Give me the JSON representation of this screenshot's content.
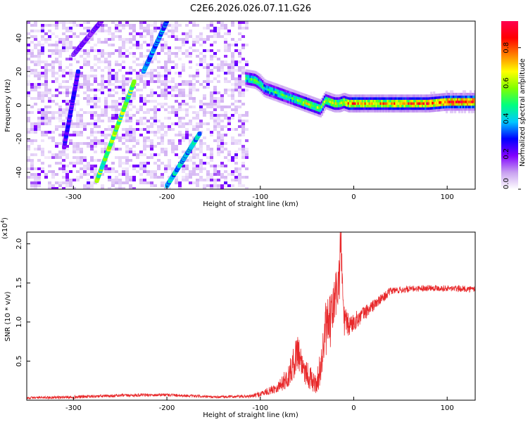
{
  "chart_data": [
    {
      "type": "heatmap",
      "title": "C2E6.2026.026.07.11.G26",
      "xlabel": "Height of straight line (km)",
      "ylabel": "Frequency (Hz)",
      "xlim": [
        -350,
        130
      ],
      "ylim": [
        -50,
        50
      ],
      "xticks": [
        -300,
        -200,
        -100,
        0,
        100
      ],
      "yticks": [
        -40,
        -20,
        0,
        20,
        40
      ],
      "xtick_labels": [
        "-300",
        "-200",
        "-100",
        "0",
        "100"
      ],
      "ytick_labels": [
        "-40",
        "-20",
        "0",
        "20",
        "40"
      ],
      "noise_region_x": [
        -350,
        -115
      ],
      "ridge": {
        "x": [
          -115,
          -105,
          -100,
          -95,
          -90,
          -85,
          -80,
          -75,
          -70,
          -65,
          -60,
          -55,
          -50,
          -45,
          -40,
          -35,
          -30,
          -25,
          -20,
          -15,
          -10,
          -5,
          0,
          10,
          20,
          40,
          60,
          80,
          100,
          130
        ],
        "f": [
          16,
          15,
          13,
          10,
          9,
          8,
          7,
          6,
          5,
          4,
          3,
          2,
          1,
          0,
          -1,
          -2,
          3,
          2,
          1,
          1,
          2,
          1,
          1,
          1,
          1,
          1,
          1,
          1,
          2,
          2
        ],
        "amp": [
          0.45,
          0.55,
          0.5,
          0.4,
          0.45,
          0.45,
          0.5,
          0.5,
          0.45,
          0.5,
          0.55,
          0.6,
          0.65,
          0.6,
          0.55,
          0.6,
          0.55,
          0.6,
          0.65,
          0.6,
          0.7,
          0.75,
          0.8,
          0.75,
          0.72,
          0.75,
          0.78,
          0.8,
          0.85,
          0.9
        ]
      },
      "streaks": [
        {
          "x": [
            -275,
            -235
          ],
          "f": [
            -45,
            14
          ],
          "amp": 0.55
        },
        {
          "x": [
            -200,
            -165
          ],
          "f": [
            -48,
            -17
          ],
          "amp": 0.4
        },
        {
          "x": [
            -225,
            -200
          ],
          "f": [
            20,
            50
          ],
          "amp": 0.35
        },
        {
          "x": [
            -310,
            -295
          ],
          "f": [
            -25,
            20
          ],
          "amp": 0.25
        },
        {
          "x": [
            -300,
            -270
          ],
          "f": [
            30,
            50
          ],
          "amp": 0.2
        }
      ],
      "colorbar": {
        "label": "Normalized spectral amplitude",
        "ticks": [
          0.0,
          0.2,
          0.4,
          0.6,
          0.8
        ],
        "tick_labels": [
          "0.0",
          "0.2",
          "0.4",
          "0.6",
          "0.8"
        ],
        "range": [
          0,
          0.95
        ],
        "colors": [
          "#ffffff",
          "#c8a0f0",
          "#8000ff",
          "#0000ff",
          "#00c8ff",
          "#00ff80",
          "#80ff00",
          "#ffff00",
          "#ff8000",
          "#ff0000",
          "#ff0050"
        ]
      }
    },
    {
      "type": "line",
      "xlabel": "Height of straight line (km)",
      "ylabel": "SNR (10 * v/v)",
      "exponent_label": "(x10",
      "exponent": "4",
      "exponent_close": ")",
      "xlim": [
        -350,
        130
      ],
      "ylim": [
        0,
        2.15
      ],
      "xticks": [
        -300,
        -200,
        -100,
        0,
        100
      ],
      "yticks": [
        0.5,
        1.0,
        1.5,
        2.0
      ],
      "xtick_labels": [
        "-300",
        "-200",
        "-100",
        "0",
        "100"
      ],
      "ytick_labels": [
        "0.5",
        "1.0",
        "1.5",
        "2.0"
      ],
      "color": "#e8282a",
      "series": [
        {
          "name": "SNR",
          "x": [
            -350,
            -300,
            -250,
            -200,
            -150,
            -110,
            -100,
            -90,
            -80,
            -70,
            -65,
            -60,
            -55,
            -50,
            -45,
            -40,
            -35,
            -30,
            -25,
            -20,
            -15,
            -14,
            -12,
            -10,
            -5,
            0,
            10,
            20,
            30,
            40,
            60,
            80,
            100,
            130
          ],
          "y": [
            0.03,
            0.04,
            0.06,
            0.07,
            0.04,
            0.05,
            0.08,
            0.12,
            0.18,
            0.3,
            0.45,
            0.65,
            0.45,
            0.35,
            0.25,
            0.2,
            0.45,
            0.9,
            1.0,
            1.3,
            1.6,
            2.1,
            1.4,
            1.0,
            0.95,
            1.0,
            1.1,
            1.2,
            1.3,
            1.4,
            1.42,
            1.44,
            1.43,
            1.42
          ],
          "noise": [
            0.015,
            0.02,
            0.02,
            0.02,
            0.015,
            0.02,
            0.04,
            0.05,
            0.08,
            0.15,
            0.2,
            0.25,
            0.2,
            0.18,
            0.15,
            0.12,
            0.25,
            0.35,
            0.35,
            0.35,
            0.35,
            0.3,
            0.3,
            0.2,
            0.15,
            0.12,
            0.1,
            0.08,
            0.06,
            0.05,
            0.04,
            0.04,
            0.04,
            0.04
          ]
        }
      ]
    }
  ]
}
